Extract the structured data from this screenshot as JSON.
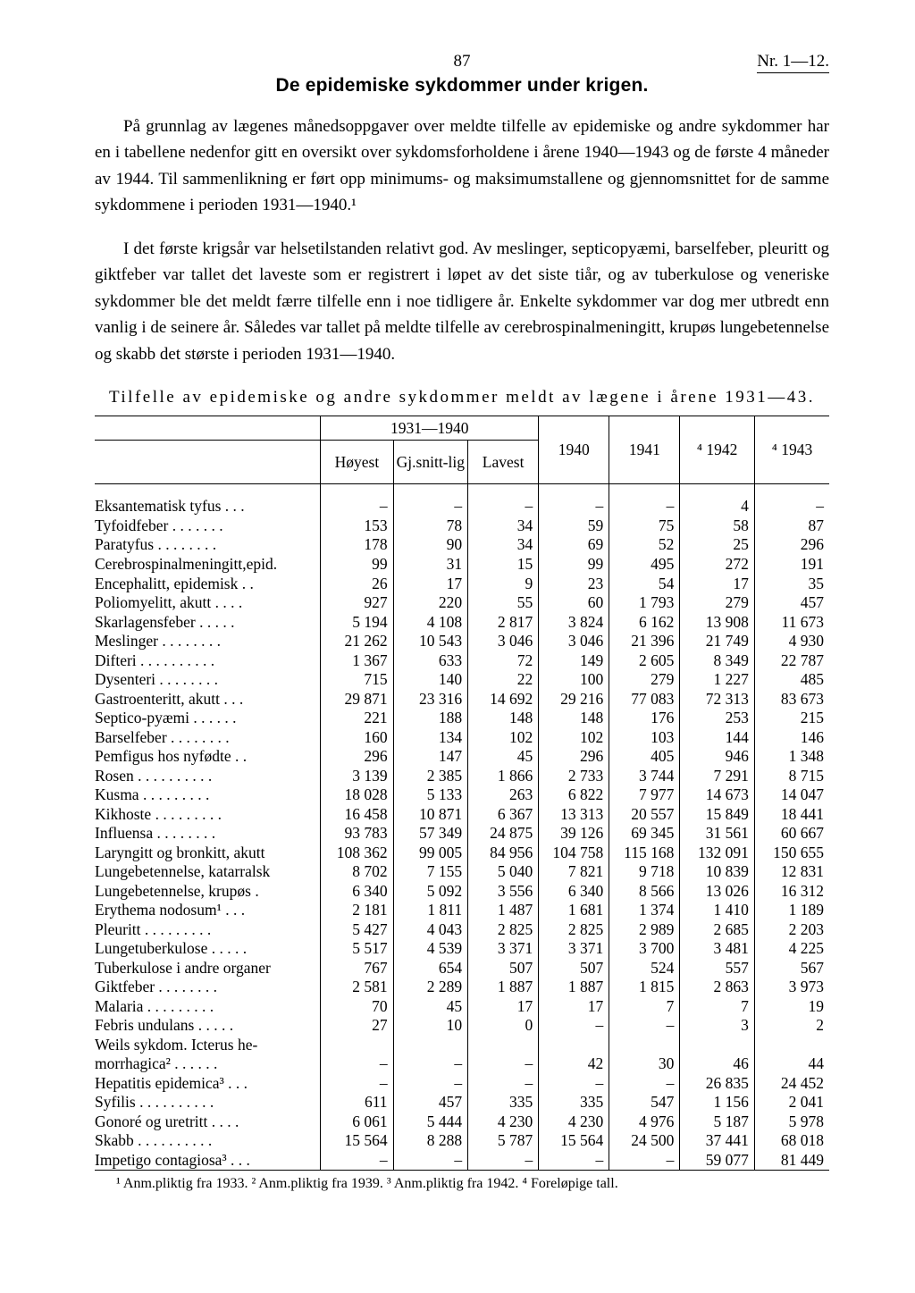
{
  "header": {
    "pagenum": "87",
    "issue": "Nr. 1—12."
  },
  "title": "De epidemiske sykdommer under krigen.",
  "paragraphs": [
    "På grunnlag av lægenes månedsoppgaver over meldte tilfelle av epidemiske og andre sykdommer har en i tabellene nedenfor gitt en oversikt over sykdomsforholdene i årene 1940—1943 og de første 4 måneder av 1944. Til sammenlikning er ført opp minimums- og maksimumstallene og gjennomsnittet for de samme sykdommene i perioden 1931—1940.¹",
    "I det første krigsår var helsetilstanden relativt god. Av meslinger, septicopyæmi, barselfeber, pleuritt og giktfeber var tallet det laveste som er registrert i løpet av det siste tiår, og av tuberkulose og veneriske sykdommer ble det meldt færre tilfelle enn i noe tidligere år. Enkelte sykdommer var dog mer utbredt enn vanlig i de seinere år. Således var tallet på meldte tilfelle av cerebrospinalmeningitt, krupøs lungebetennelse og skabb det største i perioden 1931—1940."
  ],
  "table": {
    "caption": "Tilfelle av epidemiske og andre sykdommer meldt av lægene i årene 1931—43.",
    "header": {
      "group": "1931—1940",
      "sub": [
        "Høyest",
        "Gj.snitt-lig",
        "Lavest"
      ],
      "years": [
        "1940",
        "1941",
        "⁴ 1942",
        "⁴ 1943"
      ]
    },
    "rows": [
      {
        "label": "Eksantematisk tyfus . . .",
        "c": [
          "–",
          "–",
          "–",
          "–",
          "–",
          "4",
          "–"
        ]
      },
      {
        "label": "Tyfoidfeber . . . . . . .",
        "c": [
          "153",
          "78",
          "34",
          "59",
          "75",
          "58",
          "87"
        ]
      },
      {
        "label": "Paratyfus . . . . . . . .",
        "c": [
          "178",
          "90",
          "34",
          "69",
          "52",
          "25",
          "296"
        ]
      },
      {
        "label": "Cerebrospinalmeningitt,epid.",
        "c": [
          "99",
          "31",
          "15",
          "99",
          "495",
          "272",
          "191"
        ]
      },
      {
        "label": "Encephalitt, epidemisk . .",
        "c": [
          "26",
          "17",
          "9",
          "23",
          "54",
          "17",
          "35"
        ]
      },
      {
        "label": "Poliomyelitt, akutt . . . .",
        "c": [
          "927",
          "220",
          "55",
          "60",
          "1 793",
          "279",
          "457"
        ]
      },
      {
        "label": "Skarlagensfeber  . . . . .",
        "c": [
          "5 194",
          "4 108",
          "2 817",
          "3 824",
          "6 162",
          "13 908",
          "11 673"
        ]
      },
      {
        "label": "Meslinger  . . . . . . . .",
        "c": [
          "21 262",
          "10 543",
          "3 046",
          "3 046",
          "21 396",
          "21 749",
          "4 930"
        ]
      },
      {
        "label": "Difteri . . . . . . . . . .",
        "c": [
          "1 367",
          "633",
          "72",
          "149",
          "2 605",
          "8 349",
          "22 787"
        ]
      },
      {
        "label": "Dysenteri . . . . . . . .",
        "c": [
          "715",
          "140",
          "22",
          "100",
          "279",
          "1 227",
          "485"
        ]
      },
      {
        "label": "Gastroenteritt, akutt . . .",
        "c": [
          "29 871",
          "23 316",
          "14 692",
          "29 216",
          "77 083",
          "72 313",
          "83 673"
        ]
      },
      {
        "label": "Septico-pyæmi . . . . . .",
        "c": [
          "221",
          "188",
          "148",
          "148",
          "176",
          "253",
          "215"
        ]
      },
      {
        "label": "Barselfeber . . . . . . . .",
        "c": [
          "160",
          "134",
          "102",
          "102",
          "103",
          "144",
          "146"
        ]
      },
      {
        "label": "Pemfigus hos nyfødte  . .",
        "c": [
          "296",
          "147",
          "45",
          "296",
          "405",
          "946",
          "1 348"
        ]
      },
      {
        "label": "Rosen . . . . . . . . . .",
        "c": [
          "3 139",
          "2 385",
          "1 866",
          "2 733",
          "3 744",
          "7 291",
          "8 715"
        ]
      },
      {
        "label": "Kusma . . . . . . . . .",
        "c": [
          "18 028",
          "5 133",
          "263",
          "6 822",
          "7 977",
          "14 673",
          "14 047"
        ]
      },
      {
        "label": "Kikhoste . . . . . . . . .",
        "c": [
          "16 458",
          "10 871",
          "6 367",
          "13 313",
          "20 557",
          "15 849",
          "18 441"
        ]
      },
      {
        "label": "Influensa  . . . . . . . .",
        "c": [
          "93 783",
          "57 349",
          "24 875",
          "39 126",
          "69 345",
          "31 561",
          "60 667"
        ]
      },
      {
        "label": "Laryngitt og bronkitt, akutt",
        "c": [
          "108 362",
          "99 005",
          "84 956",
          "104 758",
          "115 168",
          "132 091",
          "150 655"
        ]
      },
      {
        "label": "Lungebetennelse, katarralsk",
        "c": [
          "8 702",
          "7 155",
          "5 040",
          "7 821",
          "9 718",
          "10 839",
          "12 831"
        ]
      },
      {
        "label": "Lungebetennelse, krupøs  .",
        "c": [
          "6 340",
          "5 092",
          "3 556",
          "6 340",
          "8 566",
          "13 026",
          "16 312"
        ]
      },
      {
        "label": "Erythema nodosum¹ . . .",
        "c": [
          "2 181",
          "1 811",
          "1 487",
          "1 681",
          "1 374",
          "1 410",
          "1 189"
        ]
      },
      {
        "label": "Pleuritt . . . . . . . . .",
        "c": [
          "5 427",
          "4 043",
          "2 825",
          "2 825",
          "2 989",
          "2 685",
          "2 203"
        ]
      },
      {
        "label": "Lungetuberkulose . . . . .",
        "c": [
          "5 517",
          "4 539",
          "3 371",
          "3 371",
          "3 700",
          "3 481",
          "4 225"
        ]
      },
      {
        "label": "Tuberkulose i andre organer",
        "c": [
          "767",
          "654",
          "507",
          "507",
          "524",
          "557",
          "567"
        ]
      },
      {
        "label": "Giktfeber . . . . . . . .",
        "c": [
          "2 581",
          "2 289",
          "1 887",
          "1 887",
          "1 815",
          "2 863",
          "3 973"
        ]
      },
      {
        "label": "Malaria . . . . . . . . .",
        "c": [
          "70",
          "45",
          "17",
          "17",
          "7",
          "7",
          "19"
        ]
      },
      {
        "label": "Febris undulans . . . . .",
        "c": [
          "27",
          "10",
          "0",
          "–",
          "–",
          "3",
          "2"
        ]
      },
      {
        "label": "Weils sykdom.  Icterus he-",
        "c": [
          "",
          "",
          "",
          "",
          "",
          "",
          ""
        ]
      },
      {
        "label": " morrhagica² . . . . . .",
        "c": [
          "–",
          "–",
          "–",
          "42",
          "30",
          "46",
          "44"
        ]
      },
      {
        "label": "Hepatitis epidemica³ . . .",
        "c": [
          "–",
          "–",
          "–",
          "–",
          "–",
          "26 835",
          "24 452"
        ]
      },
      {
        "label": "Syfilis . . . . . . . . . .",
        "c": [
          "611",
          "457",
          "335",
          "335",
          "547",
          "1 156",
          "2 041"
        ]
      },
      {
        "label": "Gonoré og uretritt . . . .",
        "c": [
          "6 061",
          "5 444",
          "4 230",
          "4 230",
          "4 976",
          "5 187",
          "5 978"
        ]
      },
      {
        "label": "Skabb . . . . . . . . . .",
        "c": [
          "15 564",
          "8 288",
          "5 787",
          "15 564",
          "24 500",
          "37 441",
          "68 018"
        ]
      },
      {
        "label": "Impetigo contagiosa³ . . .",
        "c": [
          "–",
          "–",
          "–",
          "–",
          "–",
          "59 077",
          "81 449"
        ]
      }
    ],
    "footnotes": "¹ Anm.pliktig fra 1933.  ² Anm.pliktig fra 1939.  ³ Anm.pliktig fra 1942.  ⁴ Foreløpige tall."
  }
}
